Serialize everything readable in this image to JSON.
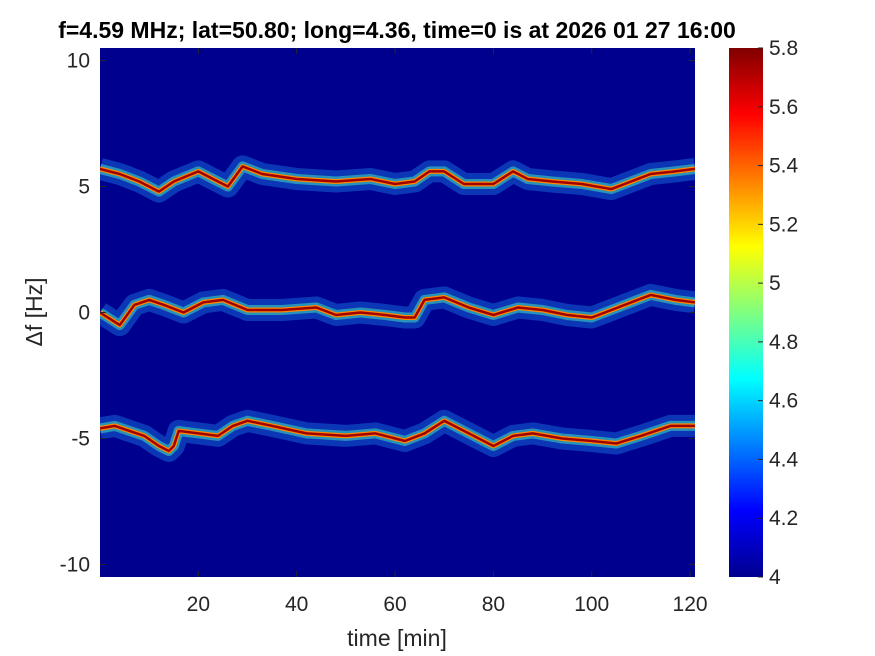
{
  "chart_data": {
    "type": "heatmap",
    "title": "f=4.59 MHz;  lat=50.80; long=4.36, time=0 is at 2026 01 27 16:00",
    "xlabel": "time [min]",
    "ylabel": "Δf [Hz]",
    "xlim": [
      0,
      121
    ],
    "ylim": [
      -10.5,
      10.5
    ],
    "xticks": [
      20,
      40,
      60,
      80,
      100,
      120
    ],
    "yticks": [
      -10,
      -5,
      0,
      5,
      10
    ],
    "colorbar": {
      "colormap": "jet",
      "clim": [
        4,
        5.8
      ],
      "ticks": [
        4,
        4.2,
        4.4,
        4.6,
        4.8,
        5,
        5.2,
        5.4,
        5.6,
        5.8
      ]
    },
    "background_value": 4.0,
    "grid": false,
    "traces": [
      {
        "x": [
          0,
          4,
          8,
          12,
          15,
          20,
          24,
          26,
          29,
          33,
          40,
          48,
          55,
          60,
          64,
          67,
          70,
          74,
          80,
          84,
          87,
          92,
          98,
          104,
          108,
          112,
          117,
          121
        ],
        "y": [
          5.7,
          5.5,
          5.2,
          4.8,
          5.2,
          5.6,
          5.2,
          5.0,
          5.8,
          5.5,
          5.3,
          5.2,
          5.3,
          5.1,
          5.2,
          5.6,
          5.6,
          5.1,
          5.1,
          5.6,
          5.3,
          5.2,
          5.1,
          4.9,
          5.2,
          5.5,
          5.6,
          5.7
        ]
      },
      {
        "x": [
          0,
          4,
          7,
          10,
          13,
          17,
          21,
          25,
          30,
          37,
          44,
          48,
          53,
          58,
          62,
          64,
          66,
          70,
          75,
          80,
          85,
          90,
          95,
          100,
          104,
          108,
          112,
          117,
          121
        ],
        "y": [
          0.0,
          -0.5,
          0.3,
          0.5,
          0.3,
          0.0,
          0.4,
          0.5,
          0.1,
          0.1,
          0.2,
          -0.1,
          0.0,
          -0.1,
          -0.2,
          -0.2,
          0.5,
          0.6,
          0.2,
          -0.1,
          0.2,
          0.1,
          -0.1,
          -0.2,
          0.1,
          0.4,
          0.7,
          0.5,
          0.4
        ]
      },
      {
        "x": [
          0,
          3,
          6,
          9,
          12,
          14,
          15,
          16,
          20,
          24,
          27,
          30,
          35,
          42,
          50,
          56,
          62,
          66,
          70,
          76,
          80,
          84,
          88,
          94,
          100,
          105,
          110,
          116,
          121
        ],
        "y": [
          -4.6,
          -4.5,
          -4.7,
          -4.9,
          -5.3,
          -5.5,
          -5.3,
          -4.7,
          -4.8,
          -4.9,
          -4.5,
          -4.3,
          -4.5,
          -4.8,
          -4.9,
          -4.8,
          -5.1,
          -4.8,
          -4.3,
          -4.9,
          -5.3,
          -4.9,
          -4.8,
          -5.0,
          -5.1,
          -5.2,
          -4.9,
          -4.5,
          -4.5
        ]
      }
    ]
  }
}
